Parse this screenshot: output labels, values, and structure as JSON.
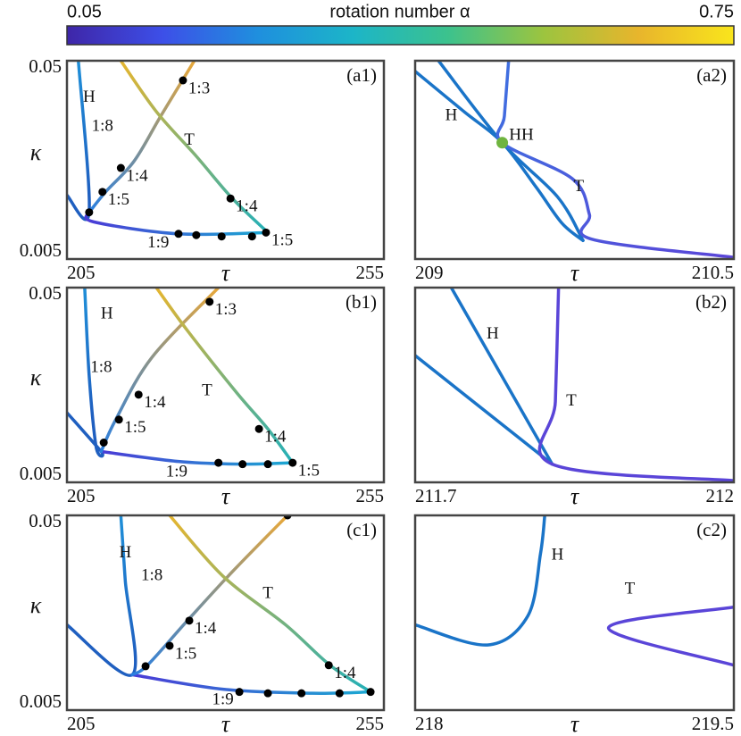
{
  "colorbar": {
    "label": "rotation number α",
    "min_label": "0.05",
    "max_label": "0.75",
    "colors": [
      "#3e26a8",
      "#3d4fe8",
      "#1f8fde",
      "#1cb5c8",
      "#3cc28d",
      "#9cc43f",
      "#e8b52c",
      "#f9e51c"
    ]
  },
  "chart_data": [
    {
      "type": "line",
      "label": "(a1)",
      "x_label": "τ",
      "y_label": "κ",
      "xlim": [
        205,
        255
      ],
      "xticks": [
        205,
        255
      ],
      "ylim": [
        0.005,
        0.05
      ],
      "yticks": [
        0.05,
        0.005
      ],
      "y_log": true,
      "series": [
        {
          "colors": [
            "#1f5fc0",
            "#1f8fd8"
          ],
          "x": [
            205,
            208.5,
            206.8
          ],
          "y": [
            0.0105,
            0.0086,
            0.05
          ]
        },
        {
          "colors": [
            "#4a3bd6",
            "#1ba9d2"
          ],
          "x": [
            208.5,
            209.2,
            222.6,
            236.7
          ],
          "y": [
            0.0086,
            0.0077,
            0.0067,
            0.0068
          ]
        },
        {
          "colors": [
            "#2a7fe0",
            "#e8a83a"
          ],
          "x": [
            208.5,
            211.1,
            215.6,
            219.8,
            225.1
          ],
          "y": [
            0.0086,
            0.0109,
            0.0156,
            0.0263,
            0.05
          ]
        },
        {
          "colors": [
            "#e5b52f",
            "#23b0b8"
          ],
          "x": [
            213.5,
            219.1,
            225.4,
            231.1,
            236.7
          ],
          "y": [
            0.05,
            0.0277,
            0.0165,
            0.0101,
            0.0068
          ]
        }
      ],
      "dots": [
        {
          "x": 223.3,
          "y": 0.0398,
          "label": "1:3"
        },
        {
          "x": 213.5,
          "y": 0.0144,
          "label": "1:4"
        },
        {
          "x": 210.6,
          "y": 0.0109,
          "label": "1:5"
        },
        {
          "x": 208.5,
          "y": 0.0086
        },
        {
          "x": 230.8,
          "y": 0.0101,
          "label": "1:4"
        },
        {
          "x": 236.4,
          "y": 0.0068,
          "label": "1:5"
        },
        {
          "x": 222.6,
          "y": 0.0067
        },
        {
          "x": 225.4,
          "y": 0.0066
        },
        {
          "x": 229.4,
          "y": 0.0065
        },
        {
          "x": 234.2,
          "y": 0.0065
        }
      ],
      "annotations": [
        {
          "text": "H",
          "x": 208.5,
          "y": 0.0324
        },
        {
          "text": "T",
          "x": 224.3,
          "y": 0.0197
        },
        {
          "text": "1:8",
          "x": 210.6,
          "y": 0.0232
        },
        {
          "text": "1:9",
          "x": 219.4,
          "y": 0.006
        }
      ]
    },
    {
      "type": "line",
      "label": "(a2)",
      "x_label": "τ",
      "xlim": [
        209,
        210.5
      ],
      "xticks": [
        209,
        210.5
      ],
      "ylim": [
        0.005,
        0.05
      ],
      "y_log": true,
      "series": [
        {
          "colors": [
            "#1a74c8",
            "#1a74c8"
          ],
          "x": [
            209,
            209.23,
            209.41,
            209.57,
            209.69,
            209.79
          ],
          "y": [
            0.0442,
            0.0277,
            0.0193,
            0.0115,
            0.0076,
            0.0062
          ]
        },
        {
          "colors": [
            "#1a74c8",
            "#1a74c8"
          ],
          "x": [
            209.11,
            209.41,
            209.67,
            209.79
          ],
          "y": [
            0.05,
            0.0193,
            0.0103,
            0.0062
          ]
        },
        {
          "colors": [
            "#3f6fe0",
            "#5a45d8"
          ],
          "x": [
            209.44,
            209.42,
            209.41,
            209.74,
            209.82,
            209.83,
            210.5
          ],
          "y": [
            0.05,
            0.0263,
            0.0193,
            0.0127,
            0.0084,
            0.0063,
            0.0051
          ]
        }
      ],
      "dots": [
        {
          "x": 209.41,
          "y": 0.0193,
          "color": "#6fb43f"
        }
      ],
      "annotations": [
        {
          "text": "H",
          "x": 209.17,
          "y": 0.0263
        },
        {
          "text": "HH",
          "x": 209.5,
          "y": 0.0209
        },
        {
          "text": "T",
          "x": 209.77,
          "y": 0.0115
        }
      ]
    },
    {
      "type": "line",
      "label": "(b1)",
      "x_label": "τ",
      "y_label": "κ",
      "xlim": [
        205,
        255
      ],
      "xticks": [
        205,
        255
      ],
      "ylim": [
        0.005,
        0.05
      ],
      "yticks": [
        0.05,
        0.005
      ],
      "y_log": true,
      "series": [
        {
          "colors": [
            "#1f5fc0",
            "#1f8fd8"
          ],
          "x": [
            205,
            210.4,
            209.6,
            208.5,
            207.8
          ],
          "y": [
            0.0114,
            0.0072,
            0.0076,
            0.0177,
            0.05
          ]
        },
        {
          "colors": [
            "#4a3bd6",
            "#1ba9d2"
          ],
          "x": [
            210.4,
            222.6,
            232.5,
            240.6
          ],
          "y": [
            0.0072,
            0.0064,
            0.0062,
            0.0063
          ]
        },
        {
          "colors": [
            "#2a7fe0",
            "#e8a83a"
          ],
          "x": [
            210.4,
            212.7,
            218.4,
            228.9
          ],
          "y": [
            0.0072,
            0.0105,
            0.0219,
            0.05
          ]
        },
        {
          "colors": [
            "#e5b52f",
            "#23b0b8"
          ],
          "x": [
            219.1,
            224,
            231.8,
            236.7,
            240.6
          ],
          "y": [
            0.05,
            0.0301,
            0.0144,
            0.0094,
            0.0063
          ]
        }
      ],
      "dots": [
        {
          "x": 227.5,
          "y": 0.0423,
          "label": "1:3"
        },
        {
          "x": 216.3,
          "y": 0.0141,
          "label": "1:4"
        },
        {
          "x": 213.2,
          "y": 0.0105,
          "label": "1:5"
        },
        {
          "x": 210.8,
          "y": 0.008
        },
        {
          "x": 235.3,
          "y": 0.0094,
          "label": "1:4"
        },
        {
          "x": 240.6,
          "y": 0.0063,
          "label": "1:5"
        },
        {
          "x": 228.9,
          "y": 0.0063
        },
        {
          "x": 232.7,
          "y": 0.0062
        },
        {
          "x": 236.7,
          "y": 0.0062
        }
      ],
      "annotations": [
        {
          "text": "H",
          "x": 211.3,
          "y": 0.0364
        },
        {
          "text": "T",
          "x": 227.1,
          "y": 0.0147
        },
        {
          "text": "1:8",
          "x": 210.4,
          "y": 0.0193
        },
        {
          "text": "1:9",
          "x": 222.3,
          "y": 0.0056
        }
      ]
    },
    {
      "type": "line",
      "label": "(b2)",
      "x_label": "τ",
      "xlim": [
        211.7,
        212
      ],
      "xticks": [
        211.7,
        212
      ],
      "ylim": [
        0.005,
        0.05
      ],
      "y_log": true,
      "series": [
        {
          "colors": [
            "#1a74c8",
            "#1a74c8"
          ],
          "x": [
            211.7,
            211.829
          ],
          "y": [
            0.0224,
            0.0062
          ]
        },
        {
          "colors": [
            "#1a74c8",
            "#1a74c8"
          ],
          "x": [
            211.734,
            211.829
          ],
          "y": [
            0.05,
            0.0062
          ]
        },
        {
          "colors": [
            "#5a45d8",
            "#5a45d8"
          ],
          "x": [
            211.835,
            211.832,
            211.829,
            212
          ],
          "y": [
            0.05,
            0.013,
            0.0062,
            0.0051
          ]
        }
      ],
      "dots": [],
      "annotations": [
        {
          "text": "H",
          "x": 211.773,
          "y": 0.0286
        },
        {
          "text": "T",
          "x": 211.847,
          "y": 0.013
        }
      ]
    },
    {
      "type": "line",
      "label": "(c1)",
      "x_label": "τ",
      "y_label": "κ",
      "xlim": [
        205,
        255
      ],
      "xticks": [
        205,
        255
      ],
      "ylim": [
        0.005,
        0.05
      ],
      "yticks": [
        0.05,
        0.005
      ],
      "y_log": true,
      "series": [
        {
          "colors": [
            "#1f5fc0",
            "#1f8fd8"
          ],
          "x": [
            205,
            215.3,
            214.2,
            213.5
          ],
          "y": [
            0.0137,
            0.0076,
            0.0231,
            0.05
          ]
        },
        {
          "colors": [
            "#4a3bd6",
            "#1ba9d2"
          ],
          "x": [
            215.3,
            229.6,
            243.7,
            252.9
          ],
          "y": [
            0.0076,
            0.0064,
            0.0061,
            0.0062
          ]
        },
        {
          "colors": [
            "#2a7fe0",
            "#e8a83a"
          ],
          "x": [
            215.3,
            217.7,
            224,
            231.1,
            239.8
          ],
          "y": [
            0.0076,
            0.0085,
            0.0144,
            0.0257,
            0.05
          ]
        },
        {
          "colors": [
            "#e5b52f",
            "#23b0b8"
          ],
          "x": [
            221.2,
            229.6,
            239.5,
            246.5,
            252.9
          ],
          "y": [
            0.05,
            0.0244,
            0.0137,
            0.0085,
            0.0062
          ]
        }
      ],
      "dots": [
        {
          "x": 239.8,
          "y": 0.05
        },
        {
          "x": 224.3,
          "y": 0.0144,
          "label": "1:4"
        },
        {
          "x": 221.2,
          "y": 0.0107,
          "label": "1:5"
        },
        {
          "x": 217.4,
          "y": 0.0084
        },
        {
          "x": 246.3,
          "y": 0.0085,
          "label": "1:4"
        },
        {
          "x": 232.2,
          "y": 0.0062
        },
        {
          "x": 236.7,
          "y": 0.0061
        },
        {
          "x": 242,
          "y": 0.0061
        },
        {
          "x": 248,
          "y": 0.0061
        },
        {
          "x": 252.9,
          "y": 0.0062
        }
      ],
      "annotations": [
        {
          "text": "H",
          "x": 214.2,
          "y": 0.0318
        },
        {
          "text": "T",
          "x": 236.7,
          "y": 0.0197
        },
        {
          "text": "1:8",
          "x": 218.4,
          "y": 0.0244
        },
        {
          "text": "1:9",
          "x": 229.6,
          "y": 0.0056
        }
      ]
    },
    {
      "type": "line",
      "label": "(c2)",
      "x_label": "τ",
      "xlim": [
        218,
        219.5
      ],
      "xticks": [
        218,
        219.5
      ],
      "ylim": [
        0.005,
        0.05
      ],
      "y_log": true,
      "series": [
        {
          "colors": [
            "#1a74c8",
            "#1a74c8"
          ],
          "x": [
            218,
            218.34,
            218.53,
            218.59,
            218.61
          ],
          "y": [
            0.0137,
            0.0108,
            0.0152,
            0.0318,
            0.05
          ]
        },
        {
          "colors": [
            "#5a45d8",
            "#5a45d8"
          ],
          "x": [
            219.5,
            218.91,
            219.5
          ],
          "y": [
            0.0169,
            0.0132,
            0.0085
          ]
        }
      ],
      "dots": [],
      "annotations": [
        {
          "text": "H",
          "x": 218.67,
          "y": 0.0311
        },
        {
          "text": "T",
          "x": 219.01,
          "y": 0.0208
        }
      ]
    }
  ]
}
